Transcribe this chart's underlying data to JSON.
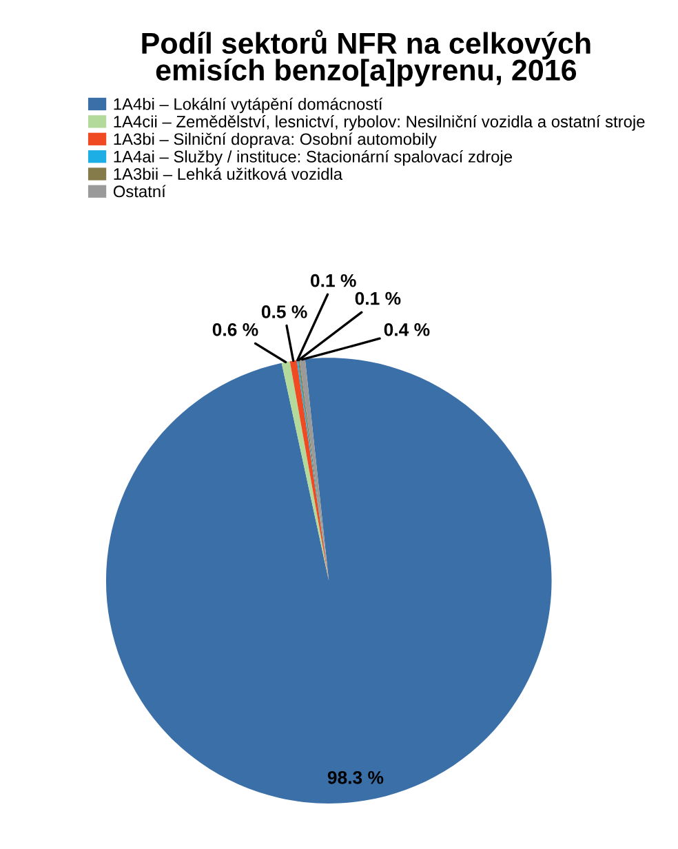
{
  "chart_data": {
    "type": "pie",
    "title": "Podíl sektorů NFR na celkových\nemisích benzo[a]pyrenu, 2016",
    "categories": [
      "1A4bi – Lokální vytápění domácností",
      "1A4cii – Zemědělství, lesnictví, rybolov: Nesilniční vozidla a ostatní stroje",
      "1A3bi – Silniční doprava: Osobní automobily",
      "1A4ai – Služby / instituce: Stacionární spalovací zdroje",
      "1A3bii – Lehká užitková vozidla",
      "Ostatní"
    ],
    "values": [
      98.3,
      0.6,
      0.5,
      0.1,
      0.1,
      0.4
    ],
    "colors": [
      "#3a6fa8",
      "#b3d99b",
      "#f04a23",
      "#1eaee6",
      "#857a4a",
      "#9a9a9a"
    ],
    "value_labels": [
      "98.3 %",
      "0.6 %",
      "0.5 %",
      "0.1 %",
      "0.1 %",
      "0.4 %"
    ],
    "legend": "top"
  }
}
